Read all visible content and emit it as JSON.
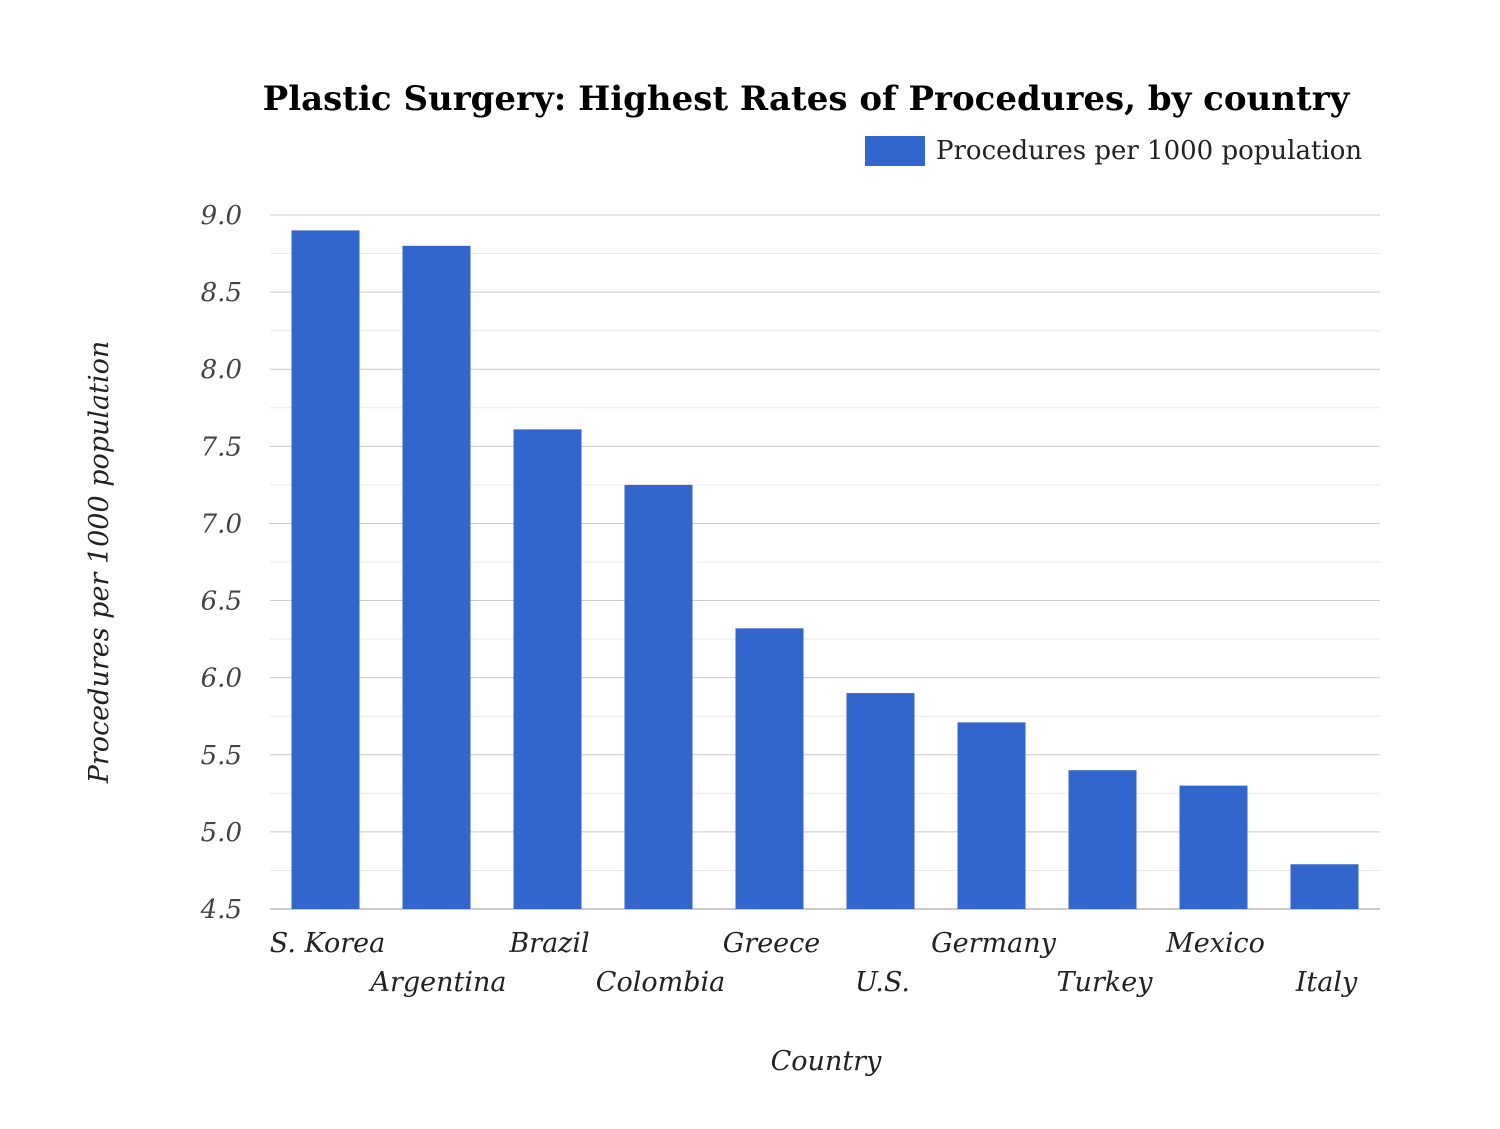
{
  "chart_data": {
    "type": "bar",
    "title": "Plastic Surgery: Highest Rates of Procedures, by country",
    "xlabel": "Country",
    "ylabel": "Procedures per 1000 population",
    "categories": [
      "S. Korea",
      "Argentina",
      "Brazil",
      "Colombia",
      "Greece",
      "U.S.",
      "Germany",
      "Turkey",
      "Mexico",
      "Italy"
    ],
    "series": [
      {
        "name": "Procedures per 1000 population",
        "color": "#3366cc",
        "values": [
          8.9,
          8.8,
          7.61,
          7.25,
          6.32,
          5.9,
          5.71,
          5.4,
          5.3,
          4.79
        ]
      }
    ],
    "ylim": [
      4.5,
      9.0
    ],
    "yticks": [
      "4.5",
      "5.0",
      "5.5",
      "6.0",
      "6.5",
      "7.0",
      "7.5",
      "8.0",
      "8.5",
      "9.0"
    ],
    "grid": true,
    "legend_position": "top-right"
  }
}
